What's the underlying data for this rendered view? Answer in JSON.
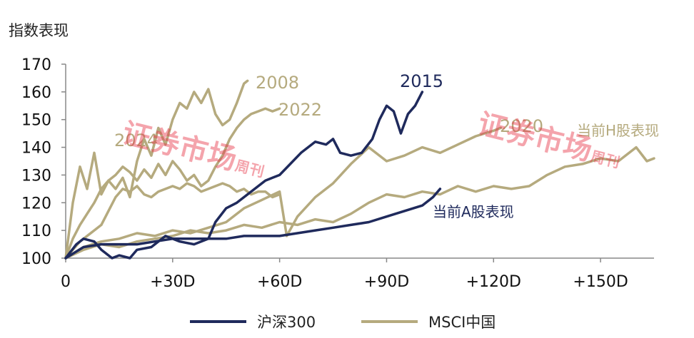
{
  "chart_data": {
    "type": "line",
    "ylabel": "指数表现",
    "ylim": [
      100,
      170
    ],
    "yticks": [
      "100",
      "110",
      "120",
      "130",
      "140",
      "150",
      "160",
      "170"
    ],
    "xlim": [
      0,
      165
    ],
    "xticks": [
      {
        "value": 0,
        "label": "0"
      },
      {
        "value": 30,
        "label": "+30D"
      },
      {
        "value": 60,
        "label": "+60D"
      },
      {
        "value": 90,
        "label": "+90D"
      },
      {
        "value": 120,
        "label": "+120D"
      },
      {
        "value": 150,
        "label": "+150D"
      }
    ],
    "legend": {
      "placement": "bottom",
      "items": [
        {
          "label": "沪深300",
          "color": "#1f2a5c"
        },
        {
          "label": "MSCI中国",
          "color": "#b5aa7e"
        }
      ]
    },
    "series": [
      {
        "name": "沪深300",
        "label": "2015",
        "color": "#1f2a5c",
        "x": [
          0,
          3,
          5,
          8,
          10,
          13,
          15,
          18,
          20,
          24,
          28,
          32,
          36,
          40,
          42,
          45,
          48,
          50,
          53,
          56,
          60,
          63,
          66,
          70,
          73,
          75,
          77,
          80,
          83,
          86,
          88,
          90,
          92,
          94,
          96,
          98,
          100
        ],
        "y": [
          100,
          105,
          107,
          106,
          103,
          100,
          101,
          100,
          103,
          104,
          108,
          106,
          105,
          107,
          113,
          118,
          120,
          122,
          125,
          128,
          130,
          134,
          138,
          142,
          141,
          143,
          138,
          137,
          138,
          143,
          150,
          155,
          153,
          145,
          152,
          155,
          160
        ]
      },
      {
        "name": "沪深300",
        "label": "当前A股表现",
        "color": "#1f2a5c",
        "x": [
          0,
          5,
          10,
          15,
          20,
          25,
          30,
          35,
          40,
          45,
          50,
          55,
          60,
          65,
          70,
          75,
          80,
          85,
          90,
          95,
          100,
          103,
          105
        ],
        "y": [
          100,
          104,
          105,
          105,
          105,
          106,
          107,
          107,
          107,
          107,
          108,
          108,
          108,
          109,
          110,
          111,
          112,
          113,
          115,
          117,
          119,
          122,
          125
        ]
      },
      {
        "name": "MSCI中国",
        "label": "2008",
        "color": "#b5aa7e",
        "x": [
          0,
          2,
          4,
          6,
          8,
          10,
          12,
          14,
          16,
          18,
          20,
          22,
          24,
          26,
          28,
          30,
          32,
          34,
          36,
          38,
          40,
          42,
          44,
          46,
          48,
          50,
          51
        ],
        "y": [
          100,
          120,
          133,
          125,
          138,
          123,
          128,
          125,
          129,
          122,
          135,
          143,
          137,
          147,
          141,
          150,
          156,
          154,
          160,
          156,
          161,
          152,
          148,
          150,
          156,
          163,
          164
        ]
      },
      {
        "name": "MSCI中国",
        "label": "2022",
        "color": "#b5aa7e",
        "x": [
          0,
          2,
          4,
          6,
          8,
          10,
          12,
          14,
          16,
          18,
          20,
          22,
          24,
          26,
          28,
          30,
          32,
          34,
          36,
          38,
          40,
          42,
          44,
          46,
          48,
          50,
          52,
          54,
          56,
          58,
          60
        ],
        "y": [
          100,
          107,
          112,
          116,
          120,
          125,
          128,
          130,
          133,
          131,
          128,
          132,
          129,
          134,
          130,
          135,
          132,
          128,
          130,
          126,
          128,
          133,
          137,
          143,
          147,
          150,
          152,
          153,
          154,
          153,
          154
        ]
      },
      {
        "name": "MSCI中国",
        "label": "2024",
        "color": "#b5aa7e",
        "x": [
          0,
          2,
          4,
          6,
          8,
          10,
          12,
          14,
          16,
          18,
          20,
          22,
          24,
          26,
          28,
          30,
          32,
          34,
          36,
          38,
          40,
          42,
          44,
          46,
          48,
          50,
          52,
          54,
          56,
          58,
          60
        ],
        "y": [
          100,
          103,
          106,
          108,
          110,
          112,
          117,
          122,
          125,
          124,
          126,
          123,
          122,
          124,
          125,
          126,
          125,
          127,
          126,
          124,
          125,
          126,
          127,
          126,
          124,
          125,
          123,
          124,
          124,
          122,
          123
        ]
      },
      {
        "name": "MSCI中国",
        "label": "2020",
        "color": "#b5aa7e",
        "x": [
          0,
          5,
          10,
          15,
          20,
          25,
          30,
          35,
          40,
          45,
          50,
          55,
          60,
          62,
          65,
          70,
          75,
          80,
          85,
          90,
          95,
          100,
          105,
          110,
          115,
          120,
          122
        ],
        "y": [
          100,
          104,
          106,
          107,
          109,
          108,
          110,
          109,
          111,
          113,
          118,
          121,
          124,
          108,
          115,
          122,
          127,
          134,
          140,
          135,
          137,
          140,
          138,
          141,
          144,
          146,
          147
        ]
      },
      {
        "name": "MSCI中国",
        "label": "当前H股表现",
        "color": "#b5aa7e",
        "x": [
          0,
          5,
          10,
          15,
          20,
          25,
          30,
          35,
          40,
          45,
          50,
          55,
          60,
          65,
          70,
          75,
          80,
          85,
          90,
          95,
          100,
          105,
          110,
          115,
          120,
          125,
          130,
          135,
          140,
          145,
          150,
          155,
          160,
          163,
          165
        ],
        "y": [
          100,
          103,
          105,
          104,
          106,
          107,
          108,
          110,
          109,
          110,
          112,
          111,
          113,
          112,
          114,
          113,
          116,
          120,
          123,
          122,
          124,
          123,
          126,
          124,
          126,
          125,
          126,
          130,
          133,
          134,
          136,
          135,
          140,
          135,
          136
        ]
      }
    ]
  }
}
